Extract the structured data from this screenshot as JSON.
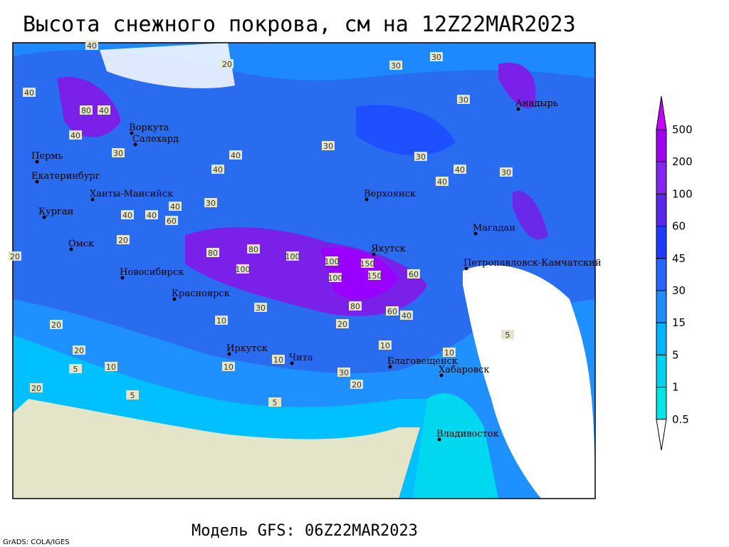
{
  "title": "Высота снежного покрова, см на 12Z22MAR2023",
  "footer": "Модель GFS: 06Z22MAR2023",
  "credit": "GrADS: COLA/IGES",
  "legend": {
    "levels": [
      "500",
      "200",
      "100",
      "60",
      "45",
      "30",
      "15",
      "5",
      "1",
      "0.5"
    ]
  },
  "cities": [
    "Воркута",
    "Салехард",
    "Пермь",
    "Екатеринбург",
    "Ханты-Мансийск",
    "Курган",
    "Омск",
    "Новосибирск",
    "Красноярск",
    "Иркутск",
    "Чита",
    "Благовещенск",
    "Хабаровск",
    "Владивосток",
    "Верхоянск",
    "Якутск",
    "Магадан",
    "Анадырь",
    "Петропавловск-Камчатский"
  ],
  "contour_labels": [
    "40",
    "30",
    "20",
    "40",
    "30",
    "80",
    "40",
    "40",
    "30",
    "40",
    "40",
    "30",
    "30",
    "30",
    "40",
    "40",
    "30",
    "30",
    "40",
    "40",
    "20",
    "40",
    "60",
    "80",
    "80",
    "100",
    "100",
    "100",
    "150",
    "150",
    "100",
    "80",
    "60",
    "60",
    "40",
    "30",
    "20",
    "20",
    "20",
    "10",
    "10",
    "10",
    "10",
    "5",
    "5",
    "5",
    "20",
    "10",
    "20",
    "30",
    "20",
    "10",
    "5"
  ]
}
